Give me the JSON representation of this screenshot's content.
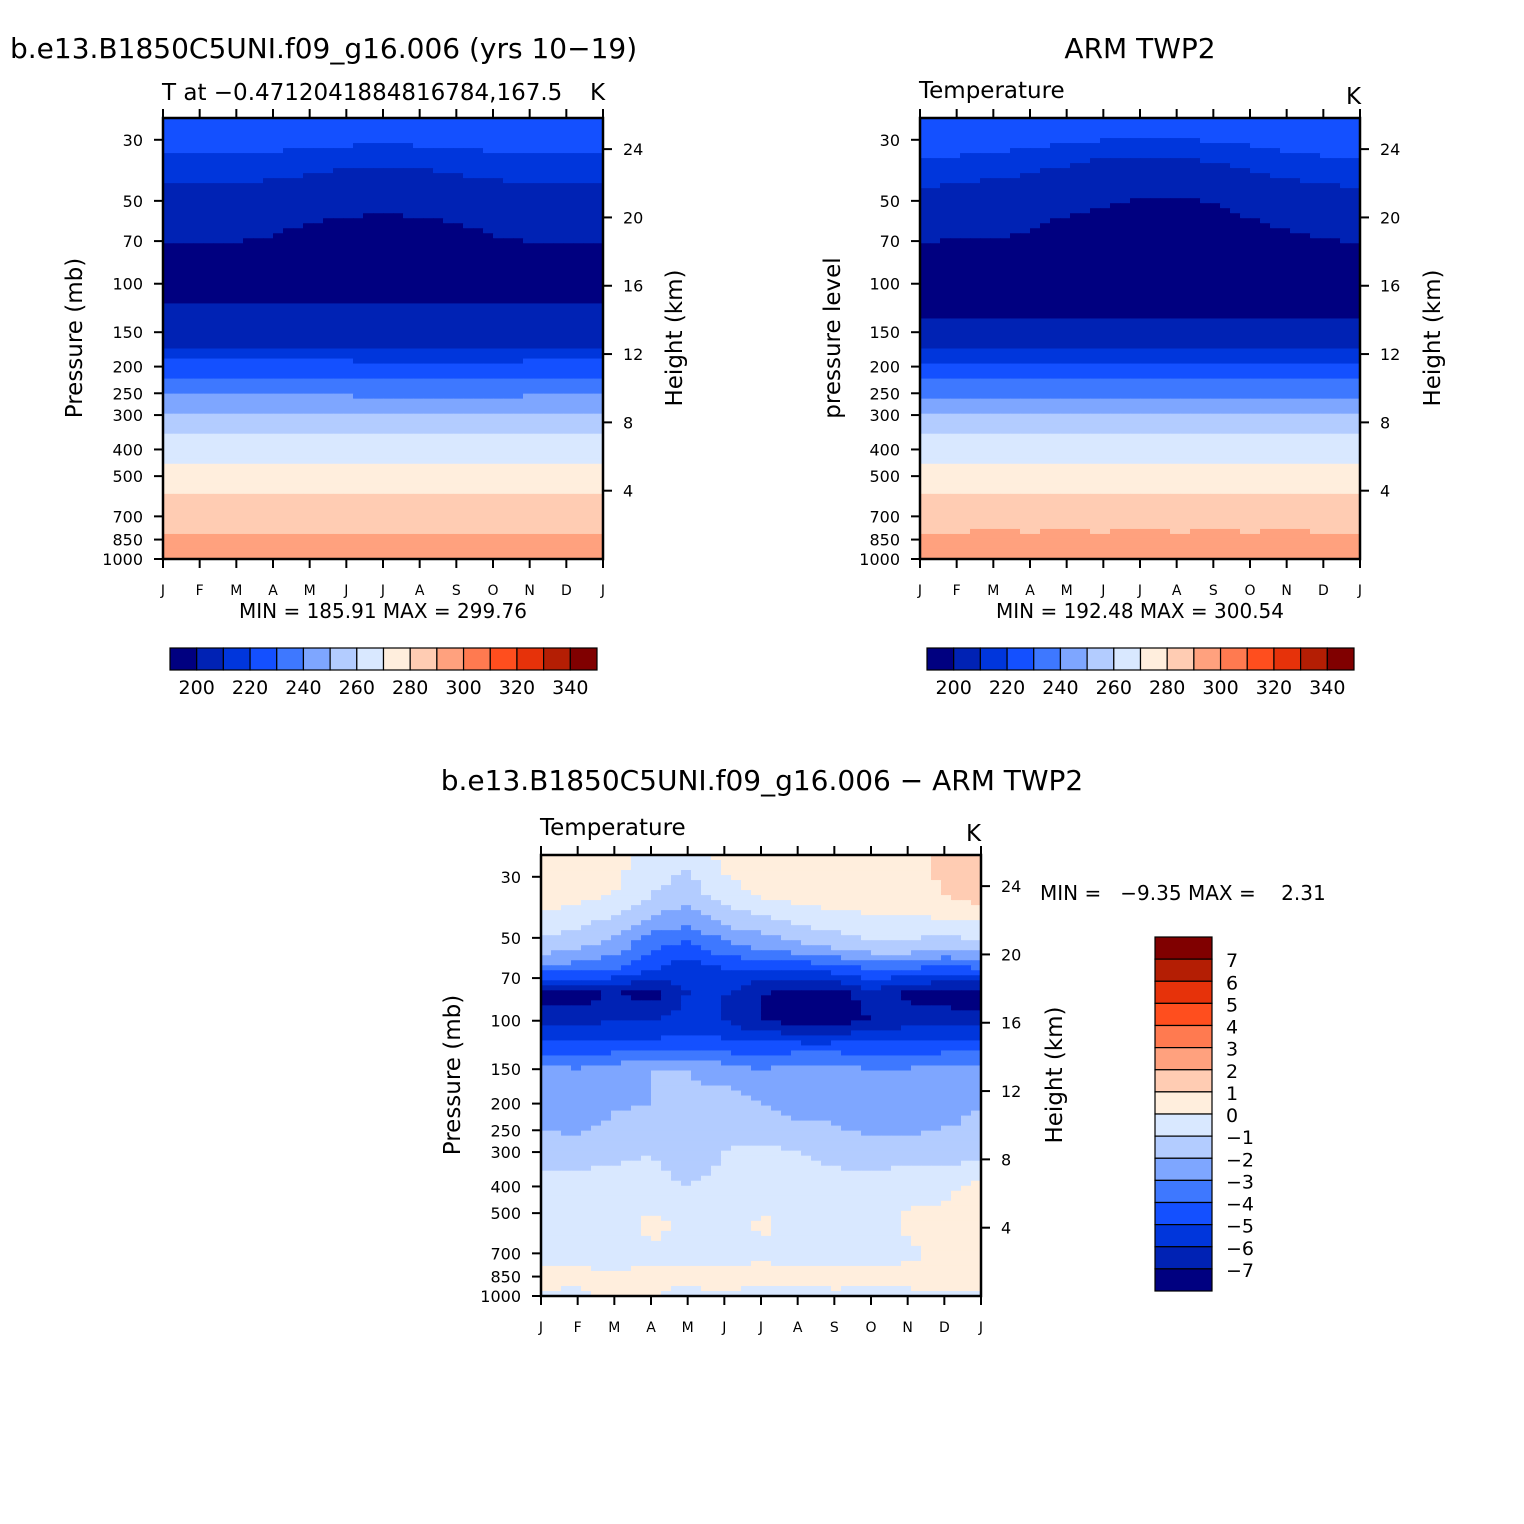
{
  "colors": {
    "abs_palette": [
      "#000080",
      "#0022b4",
      "#0036dc",
      "#1450ff",
      "#3e78ff",
      "#7ea6ff",
      "#b3ccff",
      "#d9e8ff",
      "#ffeedd",
      "#ffccb3",
      "#ffa17e",
      "#ff7a50",
      "#ff4e1e",
      "#e6320a",
      "#b41e04",
      "#800000"
    ],
    "diff_palette": [
      "#000080",
      "#0022b4",
      "#0036dc",
      "#1450ff",
      "#3e78ff",
      "#7ea6ff",
      "#b3ccff",
      "#d9e8ff",
      "#ffeedd",
      "#ffccb3",
      "#ffa17e",
      "#ff7a50",
      "#ff4e1e",
      "#e6320a",
      "#b41e04",
      "#800000"
    ]
  },
  "chart_data": [
    {
      "type": "heatmap",
      "title": "b.e13.B1850C5UNI.f09_g16.006 (yrs 10−19)",
      "subtitle_left": "T at −0.4712041884816784,167.5",
      "subtitle_right": "K",
      "ylabel": "Pressure (mb)",
      "ylabel_right": "Height (km)",
      "x_categories": [
        "J",
        "F",
        "M",
        "A",
        "M",
        "J",
        "J",
        "A",
        "S",
        "O",
        "N",
        "D",
        "J"
      ],
      "y_pressure_ticks": [
        30,
        50,
        70,
        100,
        150,
        200,
        250,
        300,
        400,
        500,
        700,
        850,
        1000
      ],
      "y_height_ticks": [
        24,
        20,
        16,
        12,
        8,
        4
      ],
      "ylim": [
        1000,
        25
      ],
      "stats": "MIN = 185.91 MAX = 299.76",
      "colorbar_labels": [
        "200",
        "220",
        "240",
        "260",
        "280",
        "300",
        "320",
        "340"
      ],
      "colorbar_levels": [
        190,
        195,
        200,
        205,
        210,
        215,
        220,
        230,
        240,
        250,
        260,
        270,
        280,
        290,
        300,
        310,
        320,
        330,
        340,
        350
      ],
      "values_by_level": [
        {
          "p": 25,
          "t": [
            221,
            221,
            221,
            221,
            221,
            221,
            221,
            221,
            221,
            221,
            221,
            221,
            221
          ]
        },
        {
          "p": 40,
          "t": [
            212,
            212,
            212,
            211,
            210,
            209,
            208,
            209,
            210,
            211,
            212,
            212,
            212
          ]
        },
        {
          "p": 60,
          "t": [
            202,
            202,
            202,
            201,
            200,
            199,
            198,
            199,
            200,
            201,
            202,
            202,
            202
          ]
        },
        {
          "p": 100,
          "t": [
            196,
            196,
            196,
            196,
            196,
            196,
            196,
            196,
            196,
            196,
            196,
            196,
            196
          ]
        },
        {
          "p": 150,
          "t": [
            205,
            205,
            205,
            205,
            205,
            205,
            205,
            205,
            205,
            205,
            205,
            205,
            205
          ]
        },
        {
          "p": 200,
          "t": [
            217,
            217,
            217,
            217,
            217,
            217,
            216,
            216,
            216,
            216,
            217,
            217,
            217
          ]
        },
        {
          "p": 250,
          "t": [
            229,
            229,
            229,
            229,
            229,
            229,
            228,
            228,
            228,
            228,
            229,
            229,
            229
          ]
        },
        {
          "p": 300,
          "t": [
            238,
            238,
            238,
            238,
            238,
            238,
            237,
            237,
            237,
            237,
            238,
            238,
            238
          ]
        },
        {
          "p": 400,
          "t": [
            256,
            256,
            256,
            256,
            256,
            256,
            255,
            255,
            255,
            255,
            256,
            256,
            256
          ]
        },
        {
          "p": 500,
          "t": [
            267,
            267,
            267,
            267,
            267,
            267,
            267,
            267,
            267,
            267,
            267,
            267,
            267
          ]
        },
        {
          "p": 700,
          "t": [
            283,
            283,
            283,
            283,
            283,
            283,
            283,
            283,
            283,
            283,
            283,
            283,
            283
          ]
        },
        {
          "p": 850,
          "t": [
            292,
            292,
            292,
            292,
            292,
            292,
            292,
            292,
            292,
            292,
            292,
            292,
            292
          ]
        },
        {
          "p": 1000,
          "t": [
            299,
            299,
            299,
            299,
            299,
            299,
            299,
            299,
            299,
            299,
            299,
            299,
            299
          ]
        }
      ]
    },
    {
      "type": "heatmap",
      "title": "ARM TWP2",
      "subtitle_left": "Temperature",
      "subtitle_right": "K",
      "ylabel": "pressure level",
      "ylabel_right": "Height (km)",
      "x_categories": [
        "J",
        "F",
        "M",
        "A",
        "M",
        "J",
        "J",
        "A",
        "S",
        "O",
        "N",
        "D",
        "J"
      ],
      "y_pressure_ticks": [
        30,
        50,
        70,
        100,
        150,
        200,
        250,
        300,
        400,
        500,
        700,
        850,
        1000
      ],
      "y_height_ticks": [
        24,
        20,
        16,
        12,
        8,
        4
      ],
      "ylim": [
        1000,
        25
      ],
      "stats": "MIN = 192.48 MAX = 300.54",
      "colorbar_labels": [
        "200",
        "220",
        "240",
        "260",
        "280",
        "300",
        "320",
        "340"
      ],
      "colorbar_levels": [
        190,
        195,
        200,
        205,
        210,
        215,
        220,
        230,
        240,
        250,
        260,
        270,
        280,
        290,
        300,
        310,
        320,
        330,
        340,
        350
      ],
      "values_by_level": [
        {
          "p": 25,
          "t": [
            221,
            221,
            221,
            221,
            221,
            221,
            221,
            221,
            221,
            221,
            221,
            221,
            221
          ]
        },
        {
          "p": 40,
          "t": [
            213,
            212,
            211,
            210,
            208,
            206,
            205,
            205,
            207,
            209,
            211,
            212,
            213
          ]
        },
        {
          "p": 60,
          "t": [
            203,
            202,
            202,
            201,
            199,
            197,
            195,
            194,
            196,
            199,
            201,
            202,
            203
          ]
        },
        {
          "p": 100,
          "t": [
            194,
            194,
            194,
            194,
            194,
            194,
            194,
            194,
            194,
            194,
            194,
            194,
            194
          ]
        },
        {
          "p": 150,
          "t": [
            203,
            203,
            203,
            203,
            203,
            203,
            203,
            203,
            203,
            203,
            203,
            203,
            203
          ]
        },
        {
          "p": 200,
          "t": [
            216,
            216,
            216,
            216,
            216,
            216,
            216,
            216,
            216,
            216,
            216,
            216,
            216
          ]
        },
        {
          "p": 250,
          "t": [
            228,
            228,
            228,
            228,
            228,
            228,
            228,
            228,
            228,
            228,
            228,
            228,
            228
          ]
        },
        {
          "p": 300,
          "t": [
            237,
            237,
            237,
            237,
            237,
            237,
            237,
            237,
            237,
            237,
            237,
            237,
            237
          ]
        },
        {
          "p": 400,
          "t": [
            256,
            256,
            256,
            256,
            256,
            256,
            256,
            256,
            256,
            256,
            256,
            256,
            256
          ]
        },
        {
          "p": 500,
          "t": [
            268,
            268,
            268,
            268,
            268,
            268,
            268,
            268,
            268,
            268,
            268,
            268,
            268
          ]
        },
        {
          "p": 700,
          "t": [
            284,
            284,
            284,
            284,
            284,
            284,
            284,
            284,
            284,
            284,
            284,
            284,
            284
          ]
        },
        {
          "p": 850,
          "t": [
            293,
            293,
            294,
            293,
            294,
            293,
            294,
            293,
            294,
            293,
            294,
            293,
            293
          ]
        },
        {
          "p": 1000,
          "t": [
            300,
            300,
            300,
            300,
            300,
            300,
            300,
            300,
            300,
            300,
            300,
            300,
            300
          ]
        }
      ]
    },
    {
      "type": "heatmap",
      "title": "b.e13.B1850C5UNI.f09_g16.006 − ARM TWP2",
      "subtitle_left": "Temperature",
      "subtitle_right": "K",
      "ylabel": "Pressure (mb)",
      "ylabel_right": "Height (km)",
      "x_categories": [
        "J",
        "F",
        "M",
        "A",
        "M",
        "J",
        "J",
        "A",
        "S",
        "O",
        "N",
        "D",
        "J"
      ],
      "y_pressure_ticks": [
        30,
        50,
        70,
        100,
        150,
        200,
        250,
        300,
        400,
        500,
        700,
        850,
        1000
      ],
      "y_height_ticks": [
        24,
        20,
        16,
        12,
        8,
        4
      ],
      "ylim": [
        1000,
        25
      ],
      "stats": "MIN =   −9.35 MAX =    2.31",
      "colorbar_labels": [
        "7",
        "6",
        "5",
        "4",
        "3",
        "2",
        "1",
        "0",
        "−1",
        "−2",
        "−3",
        "−4",
        "−5",
        "−6",
        "−7"
      ],
      "colorbar_levels": [
        -8,
        -7,
        -6,
        -5,
        -4,
        -3,
        -2,
        -1,
        0,
        1,
        2,
        3,
        4,
        5,
        6,
        7,
        8
      ],
      "values_by_level": [
        {
          "p": 25,
          "t": [
            0.8,
            0.8,
            0.5,
            -0.3,
            -0.8,
            0.4,
            0.6,
            0.8,
            1.0,
            0.8,
            0.5,
            1.5,
            2.0
          ]
        },
        {
          "p": 35,
          "t": [
            0.5,
            0.4,
            0.0,
            -1.0,
            -1.5,
            -0.5,
            0.2,
            0.4,
            0.6,
            0.5,
            0.3,
            1.0,
            1.5
          ]
        },
        {
          "p": 45,
          "t": [
            -0.5,
            -0.8,
            -1.5,
            -2.5,
            -3.0,
            -2.0,
            -1.5,
            -1.0,
            -0.6,
            -0.3,
            -0.2,
            -0.3,
            -0.2
          ]
        },
        {
          "p": 55,
          "t": [
            -1.5,
            -2.0,
            -2.5,
            -4.0,
            -4.5,
            -3.5,
            -3.0,
            -2.5,
            -2.0,
            -1.5,
            -1.5,
            -2.0,
            -1.5
          ]
        },
        {
          "p": 65,
          "t": [
            -3.5,
            -3.5,
            -4.0,
            -5.0,
            -5.5,
            -5.0,
            -5.0,
            -5.0,
            -4.5,
            -4.0,
            -4.0,
            -4.5,
            -4.0
          ]
        },
        {
          "p": 80,
          "t": [
            -7.5,
            -7.5,
            -7.0,
            -7.5,
            -6.0,
            -6.0,
            -7.0,
            -7.5,
            -7.5,
            -6.5,
            -7.2,
            -7.5,
            -8.0
          ]
        },
        {
          "p": 100,
          "t": [
            -6.5,
            -6.5,
            -6.0,
            -6.0,
            -5.5,
            -6.0,
            -7.0,
            -7.5,
            -7.5,
            -7.0,
            -6.5,
            -6.5,
            -6.5
          ]
        },
        {
          "p": 125,
          "t": [
            -4.5,
            -4.5,
            -4.5,
            -4.5,
            -4.5,
            -4.5,
            -4.5,
            -4.5,
            -4.5,
            -4.5,
            -4.5,
            -4.5,
            -4.5
          ]
        },
        {
          "p": 150,
          "t": [
            -2.5,
            -3.0,
            -2.5,
            -2.0,
            -2.0,
            -2.5,
            -3.0,
            -2.5,
            -2.5,
            -3.0,
            -3.0,
            -2.5,
            -2.5
          ]
        },
        {
          "p": 200,
          "t": [
            -2.5,
            -3.0,
            -2.2,
            -2.0,
            -1.8,
            -1.5,
            -2.0,
            -2.5,
            -2.5,
            -3.0,
            -3.0,
            -2.5,
            -2.0
          ]
        },
        {
          "p": 300,
          "t": [
            -1.5,
            -1.5,
            -1.2,
            -1.0,
            -1.5,
            -1.0,
            -0.8,
            -1.0,
            -1.3,
            -1.5,
            -1.5,
            -1.5,
            -1.5
          ]
        },
        {
          "p": 400,
          "t": [
            -0.5,
            -0.5,
            -0.6,
            -0.7,
            -1.0,
            -0.8,
            -0.5,
            -0.5,
            -0.6,
            -0.6,
            -0.3,
            -0.2,
            0.3
          ]
        },
        {
          "p": 550,
          "t": [
            -0.2,
            -0.5,
            -0.5,
            0.3,
            -0.3,
            -0.5,
            0.2,
            -0.3,
            -0.5,
            -0.5,
            0.2,
            0.3,
            0.4
          ]
        },
        {
          "p": 700,
          "t": [
            -0.5,
            -0.5,
            -0.5,
            -0.2,
            -0.3,
            -0.5,
            -0.2,
            -0.3,
            -0.5,
            -0.5,
            -0.2,
            0.2,
            0.3
          ]
        },
        {
          "p": 850,
          "t": [
            0.5,
            0.3,
            0.2,
            0.2,
            0.3,
            0.5,
            0.3,
            0.3,
            0.5,
            0.3,
            0.3,
            0.5,
            1.2
          ]
        },
        {
          "p": 1000,
          "t": [
            -0.3,
            -0.2,
            0.2,
            0.1,
            -0.3,
            -0.2,
            -0.3,
            -0.5,
            -0.3,
            -0.5,
            -0.2,
            -0.2,
            -0.2
          ]
        }
      ]
    }
  ]
}
